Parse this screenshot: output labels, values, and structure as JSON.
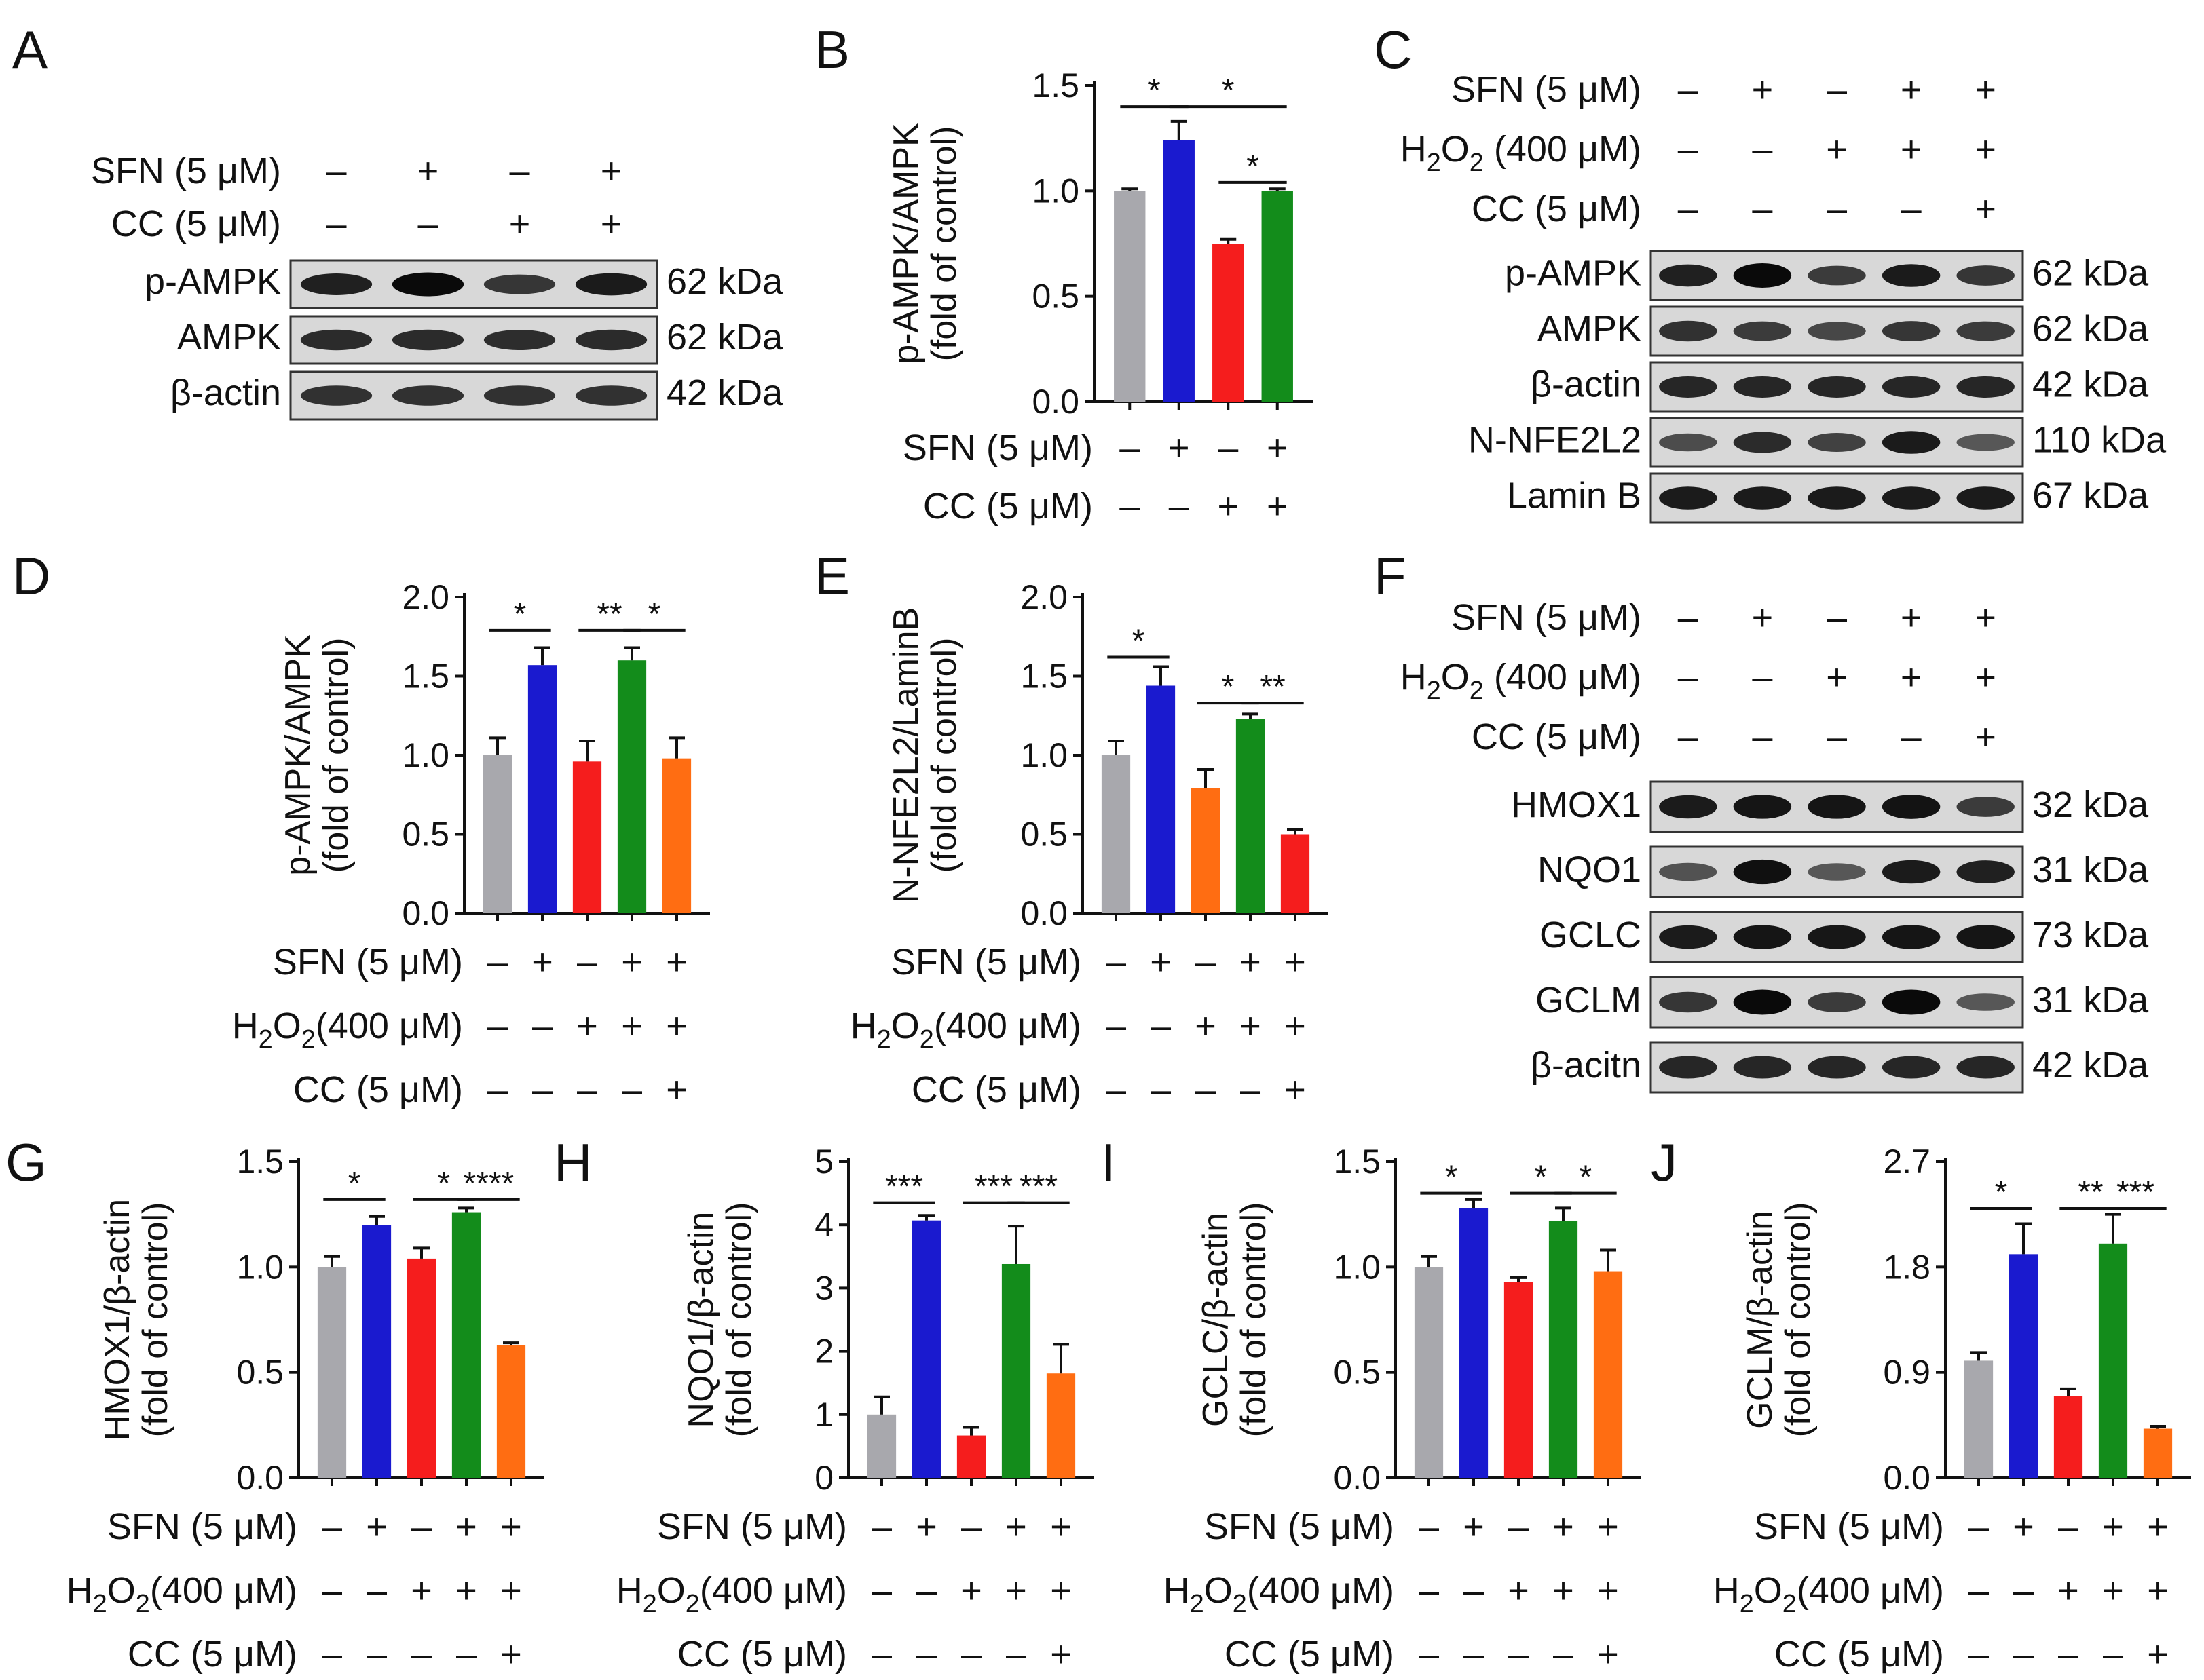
{
  "colors": {
    "gray": "#a8a8ad",
    "blue": "#1a1acf",
    "red": "#f51d1d",
    "green": "#138c1b",
    "orange": "#ff6d12"
  },
  "panels": {
    "A": {
      "label": "A",
      "conditions": [
        {
          "name": "SFN (5 μM)",
          "signs": [
            "–",
            "+",
            "–",
            "+"
          ]
        },
        {
          "name": "CC (5 μM)",
          "signs": [
            "–",
            "–",
            "+",
            "+"
          ]
        }
      ],
      "blots": [
        {
          "name": "p-AMPK",
          "kda": "62 kDa",
          "intensity": [
            0.8,
            1.0,
            0.6,
            0.85
          ]
        },
        {
          "name": "AMPK",
          "kda": "62 kDa",
          "intensity": [
            0.7,
            0.7,
            0.68,
            0.7
          ]
        },
        {
          "name": "β-actin",
          "kda": "42 kDa",
          "intensity": [
            0.65,
            0.65,
            0.65,
            0.65
          ]
        }
      ]
    },
    "C": {
      "label": "C",
      "conditions": [
        {
          "name": "SFN (5 μM)",
          "signs": [
            "–",
            "+",
            "–",
            "+",
            "+"
          ]
        },
        {
          "name": "H2O2 (400 μM)",
          "signs": [
            "–",
            "–",
            "+",
            "+",
            "+"
          ]
        },
        {
          "name": "CC (5 μM)",
          "signs": [
            "–",
            "–",
            "–",
            "–",
            "+"
          ]
        }
      ],
      "blots": [
        {
          "name": "p-AMPK",
          "kda": "62 kDa",
          "intensity": [
            0.8,
            1.0,
            0.55,
            0.85,
            0.6
          ]
        },
        {
          "name": "AMPK",
          "kda": "62 kDa",
          "intensity": [
            0.65,
            0.55,
            0.45,
            0.6,
            0.55
          ]
        },
        {
          "name": "β-actin",
          "kda": "42 kDa",
          "intensity": [
            0.75,
            0.75,
            0.75,
            0.75,
            0.75
          ]
        },
        {
          "name": "N-NFE2L2",
          "kda": "110 kDa",
          "intensity": [
            0.4,
            0.7,
            0.5,
            0.85,
            0.3
          ]
        },
        {
          "name": "Lamin B",
          "kda": "67 kDa",
          "intensity": [
            0.85,
            0.85,
            0.85,
            0.85,
            0.85
          ]
        }
      ]
    },
    "F": {
      "label": "F",
      "conditions": [
        {
          "name": "SFN (5 μM)",
          "signs": [
            "–",
            "+",
            "–",
            "+",
            "+"
          ]
        },
        {
          "name": "H2O2 (400 μM)",
          "signs": [
            "–",
            "–",
            "+",
            "+",
            "+"
          ]
        },
        {
          "name": "CC (5 μM)",
          "signs": [
            "–",
            "–",
            "–",
            "–",
            "+"
          ]
        }
      ],
      "blots": [
        {
          "name": "HMOX1",
          "kda": "32 kDa",
          "intensity": [
            0.85,
            0.9,
            0.9,
            0.92,
            0.55
          ]
        },
        {
          "name": "NQO1",
          "kda": "31 kDa",
          "intensity": [
            0.35,
            0.95,
            0.3,
            0.85,
            0.8
          ]
        },
        {
          "name": "GCLC",
          "kda": "73 kDa",
          "intensity": [
            0.85,
            0.9,
            0.88,
            0.9,
            0.9
          ]
        },
        {
          "name": "GCLM",
          "kda": "31 kDa",
          "intensity": [
            0.6,
            1.0,
            0.55,
            1.0,
            0.3
          ]
        },
        {
          "name": "β-acitn",
          "kda": "42 kDa",
          "intensity": [
            0.75,
            0.75,
            0.75,
            0.75,
            0.75
          ]
        }
      ]
    }
  },
  "chart_data": [
    {
      "panel": "B",
      "type": "bar",
      "ylabel": [
        "p-AMPK/AMPK",
        "(fold of control)"
      ],
      "ylim": [
        0,
        1.5
      ],
      "yticks": [
        "0.0",
        "0.5",
        "1.0",
        "1.5"
      ],
      "values": [
        1.0,
        1.24,
        0.75,
        1.0
      ],
      "errors": [
        0.01,
        0.09,
        0.02,
        0.01
      ],
      "colors": [
        "gray",
        "blue",
        "red",
        "green"
      ],
      "conditions": [
        {
          "name": "SFN (5 μM)",
          "signs": [
            "–",
            "+",
            "–",
            "+"
          ]
        },
        {
          "name": "CC (5 μM)",
          "signs": [
            "–",
            "–",
            "+",
            "+"
          ]
        }
      ],
      "sig": [
        {
          "from": 0,
          "to": 1,
          "text": "*",
          "level": 1.4
        },
        {
          "from": 1,
          "to": 3,
          "text": "*",
          "level": 1.4
        },
        {
          "from": 2,
          "to": 3,
          "text": "*",
          "level": 1.04
        }
      ]
    },
    {
      "panel": "D",
      "type": "bar",
      "ylabel": [
        "p-AMPK/AMPK",
        "(fold of control)"
      ],
      "ylim": [
        0,
        2.0
      ],
      "yticks": [
        "0.0",
        "0.5",
        "1.0",
        "1.5",
        "2.0"
      ],
      "values": [
        1.0,
        1.57,
        0.96,
        1.6,
        0.98
      ],
      "errors": [
        0.11,
        0.11,
        0.13,
        0.08,
        0.13
      ],
      "colors": [
        "gray",
        "blue",
        "red",
        "green",
        "orange"
      ],
      "conditions": [
        {
          "name": "SFN (5 μM)",
          "signs": [
            "–",
            "+",
            "–",
            "+",
            "+"
          ]
        },
        {
          "name": "H2O2(400 μM)",
          "signs": [
            "–",
            "–",
            "+",
            "+",
            "+"
          ]
        },
        {
          "name": "CC (5 μM)",
          "signs": [
            "–",
            "–",
            "–",
            "–",
            "+"
          ]
        }
      ],
      "sig": [
        {
          "from": 0,
          "to": 1,
          "text": "*",
          "level": 1.79
        },
        {
          "from": 2,
          "to": 3,
          "text": "**",
          "level": 1.79
        },
        {
          "from": 3,
          "to": 4,
          "text": "*",
          "level": 1.79
        }
      ]
    },
    {
      "panel": "E",
      "type": "bar",
      "ylabel": [
        "N-NFE2L2/LaminB",
        "(fold of control)"
      ],
      "ylim": [
        0,
        2.0
      ],
      "yticks": [
        "0.0",
        "0.5",
        "1.0",
        "1.5",
        "2.0"
      ],
      "values": [
        1.0,
        1.44,
        0.79,
        1.23,
        0.5
      ],
      "errors": [
        0.09,
        0.12,
        0.12,
        0.03,
        0.03
      ],
      "colors": [
        "gray",
        "blue",
        "orange",
        "green",
        "red"
      ],
      "conditions": [
        {
          "name": "SFN (5 μM)",
          "signs": [
            "–",
            "+",
            "–",
            "+",
            "+"
          ]
        },
        {
          "name": "H2O2(400 μM)",
          "signs": [
            "–",
            "–",
            "+",
            "+",
            "+"
          ]
        },
        {
          "name": "CC (5 μM)",
          "signs": [
            "–",
            "–",
            "–",
            "–",
            "+"
          ]
        }
      ],
      "sig": [
        {
          "from": 0,
          "to": 1,
          "text": "*",
          "level": 1.62
        },
        {
          "from": 2,
          "to": 3,
          "text": "*",
          "level": 1.33
        },
        {
          "from": 3,
          "to": 4,
          "text": "**",
          "level": 1.33
        }
      ]
    },
    {
      "panel": "G",
      "type": "bar",
      "ylabel": [
        "HMOX1/β-actin",
        "(fold of control)"
      ],
      "ylim": [
        0,
        1.5
      ],
      "yticks": [
        "0.0",
        "0.5",
        "1.0",
        "1.5"
      ],
      "values": [
        1.0,
        1.2,
        1.04,
        1.26
      ],
      "errors": [
        0.05,
        0.04,
        0.05,
        0.02
      ],
      "extra_value": 0.63,
      "extra_error": 0.01,
      "colors": [
        "gray",
        "blue",
        "red",
        "green",
        "orange"
      ],
      "conditions": [
        {
          "name": "SFN (5 μM)",
          "signs": [
            "–",
            "+",
            "–",
            "+",
            "+"
          ]
        },
        {
          "name": "H2O2(400 μM)",
          "signs": [
            "–",
            "–",
            "+",
            "+",
            "+"
          ]
        },
        {
          "name": "CC (5 μM)",
          "signs": [
            "–",
            "–",
            "–",
            "–",
            "+"
          ]
        }
      ],
      "sig": [
        {
          "from": 0,
          "to": 1,
          "text": "*",
          "level": 1.32
        },
        {
          "from": 2,
          "to": 3,
          "text": "*",
          "level": 1.32
        },
        {
          "from": 3,
          "to": 4,
          "text": "****",
          "level": 1.32
        }
      ]
    },
    {
      "panel": "H",
      "type": "bar",
      "ylabel": [
        "NQO1/β-actin",
        "(fold of control)"
      ],
      "ylim": [
        0,
        5
      ],
      "yticks": [
        "0",
        "1",
        "2",
        "3",
        "4",
        "5"
      ],
      "values": [
        1.0,
        4.07,
        0.67,
        3.38,
        1.65
      ],
      "errors": [
        0.28,
        0.08,
        0.13,
        0.6,
        0.46
      ],
      "colors": [
        "gray",
        "blue",
        "red",
        "green",
        "orange"
      ],
      "conditions": [
        {
          "name": "SFN (5 μM)",
          "signs": [
            "–",
            "+",
            "–",
            "+",
            "+"
          ]
        },
        {
          "name": "H2O2(400 μM)",
          "signs": [
            "–",
            "–",
            "+",
            "+",
            "+"
          ]
        },
        {
          "name": "CC (5 μM)",
          "signs": [
            "–",
            "–",
            "–",
            "–",
            "+"
          ]
        }
      ],
      "sig": [
        {
          "from": 0,
          "to": 1,
          "text": "***",
          "level": 4.35
        },
        {
          "from": 2,
          "to": 3,
          "text": "***",
          "level": 4.35
        },
        {
          "from": 3,
          "to": 4,
          "text": "***",
          "level": 4.35
        }
      ]
    },
    {
      "panel": "I",
      "type": "bar",
      "ylabel": [
        "GCLC/β-actin",
        "(fold of control)"
      ],
      "ylim": [
        0,
        1.5
      ],
      "yticks": [
        "0.0",
        "0.5",
        "1.0",
        "1.5"
      ],
      "values": [
        1.0,
        1.28,
        0.93,
        1.22,
        0.98
      ],
      "errors": [
        0.05,
        0.04,
        0.02,
        0.06,
        0.1
      ],
      "colors": [
        "gray",
        "blue",
        "red",
        "green",
        "orange"
      ],
      "conditions": [
        {
          "name": "SFN (5 μM)",
          "signs": [
            "–",
            "+",
            "–",
            "+",
            "+"
          ]
        },
        {
          "name": "H2O2(400 μM)",
          "signs": [
            "–",
            "–",
            "+",
            "+",
            "+"
          ]
        },
        {
          "name": "CC (5 μM)",
          "signs": [
            "–",
            "–",
            "–",
            "–",
            "+"
          ]
        }
      ],
      "sig": [
        {
          "from": 0,
          "to": 1,
          "text": "*",
          "level": 1.35
        },
        {
          "from": 2,
          "to": 3,
          "text": "*",
          "level": 1.35
        },
        {
          "from": 3,
          "to": 4,
          "text": "*",
          "level": 1.35
        }
      ]
    },
    {
      "panel": "J",
      "type": "bar",
      "ylabel": [
        "GCLM/β-actin",
        "(fold of control)"
      ],
      "ylim": [
        0,
        2.7
      ],
      "yticks": [
        "0.0",
        "0.9",
        "1.8",
        "2.7"
      ],
      "values": [
        1.0,
        1.91,
        0.7,
        2.0,
        0.42
      ],
      "errors": [
        0.07,
        0.26,
        0.06,
        0.25,
        0.02
      ],
      "colors": [
        "gray",
        "blue",
        "red",
        "green",
        "orange"
      ],
      "conditions": [
        {
          "name": "SFN (5 μM)",
          "signs": [
            "–",
            "+",
            "–",
            "+",
            "+"
          ]
        },
        {
          "name": "H2O2(400 μM)",
          "signs": [
            "–",
            "–",
            "+",
            "+",
            "+"
          ]
        },
        {
          "name": "CC (5 μM)",
          "signs": [
            "–",
            "–",
            "–",
            "–",
            "+"
          ]
        }
      ],
      "sig": [
        {
          "from": 0,
          "to": 1,
          "text": "*",
          "level": 2.3
        },
        {
          "from": 2,
          "to": 3,
          "text": "**",
          "level": 2.3
        },
        {
          "from": 3,
          "to": 4,
          "text": "***",
          "level": 2.3
        }
      ]
    }
  ]
}
